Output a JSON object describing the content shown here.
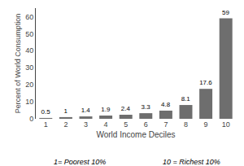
{
  "chart_data": {
    "type": "bar",
    "categories": [
      "1",
      "2",
      "3",
      "4",
      "5",
      "6",
      "7",
      "8",
      "9",
      "10"
    ],
    "values": [
      0.5,
      1,
      1.4,
      1.9,
      2.4,
      3.3,
      4.8,
      8.1,
      17.6,
      59
    ],
    "color": "#6e6e6e",
    "xlabel": "World Income Deciles",
    "ylabel": "Percent of World Consumption",
    "ylim": [
      0,
      65
    ],
    "yticks": [
      0,
      10,
      20,
      30,
      40,
      50,
      60
    ],
    "data_labels": true,
    "grid": false,
    "annotations": [
      "1= Poorest 10%",
      "10 = Richest 10%"
    ]
  }
}
